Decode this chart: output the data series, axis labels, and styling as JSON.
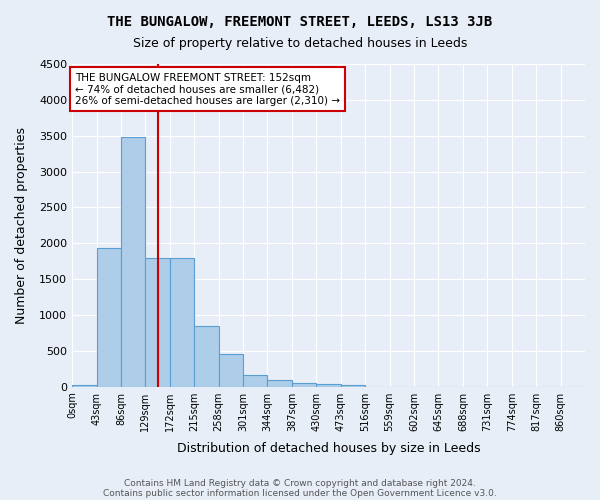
{
  "title": "THE BUNGALOW, FREEMONT STREET, LEEDS, LS13 3JB",
  "subtitle": "Size of property relative to detached houses in Leeds",
  "xlabel": "Distribution of detached houses by size in Leeds",
  "ylabel": "Number of detached properties",
  "footer_line1": "Contains HM Land Registry data © Crown copyright and database right 2024.",
  "footer_line2": "Contains public sector information licensed under the Open Government Licence v3.0.",
  "bin_labels": [
    "0sqm",
    "43sqm",
    "86sqm",
    "129sqm",
    "172sqm",
    "215sqm",
    "258sqm",
    "301sqm",
    "344sqm",
    "387sqm",
    "430sqm",
    "473sqm",
    "516sqm",
    "559sqm",
    "602sqm",
    "645sqm",
    "688sqm",
    "731sqm",
    "774sqm",
    "817sqm",
    "860sqm"
  ],
  "bar_values": [
    30,
    1930,
    3480,
    1790,
    1790,
    840,
    455,
    160,
    90,
    50,
    35,
    30,
    0,
    0,
    0,
    0,
    0,
    0,
    0,
    0,
    0
  ],
  "bar_color": "#aecde8",
  "bar_edge_color": "#5a9fd4",
  "background_color": "#e8eef8",
  "grid_color": "#ffffff",
  "vline_x": 152,
  "vline_color": "#cc0000",
  "annotation_text": "THE BUNGALOW FREEMONT STREET: 152sqm\n← 74% of detached houses are smaller (6,482)\n26% of semi-detached houses are larger (2,310) →",
  "annotation_box_color": "#ffffff",
  "annotation_box_edge": "#cc0000",
  "ylim": [
    0,
    4500
  ],
  "yticks": [
    0,
    500,
    1000,
    1500,
    2000,
    2500,
    3000,
    3500,
    4000,
    4500
  ],
  "bin_width": 43
}
